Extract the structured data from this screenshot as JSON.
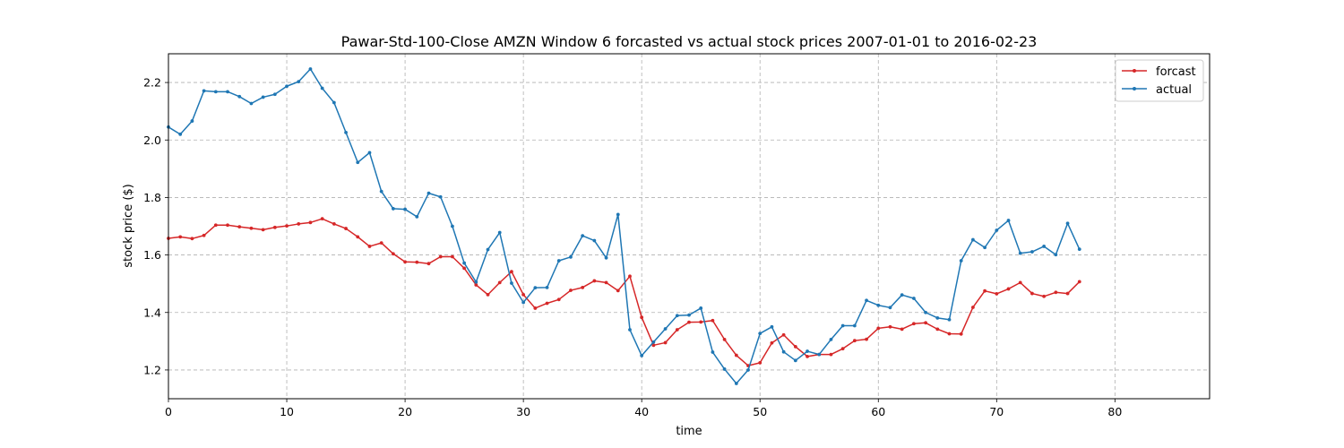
{
  "chart_data": {
    "type": "line",
    "title": "Pawar-Std-100-Close AMZN Window 6 forcasted vs actual stock prices 2007-01-01 to 2016-02-23",
    "xlabel": "time",
    "ylabel": "stock price ($)",
    "xlim": [
      0,
      88
    ],
    "ylim": [
      1.1,
      2.3
    ],
    "xticks": [
      0,
      10,
      20,
      30,
      40,
      50,
      60,
      70,
      80
    ],
    "yticks": [
      1.2,
      1.4,
      1.6,
      1.8,
      2.0,
      2.2
    ],
    "grid": true,
    "legend_position": "top-right",
    "series": [
      {
        "name": "forcast",
        "color": "#d62728",
        "x_start": 0,
        "values": [
          1.658,
          1.663,
          1.657,
          1.668,
          1.704,
          1.704,
          1.698,
          1.693,
          1.688,
          1.696,
          1.701,
          1.708,
          1.713,
          1.726,
          1.708,
          1.692,
          1.663,
          1.63,
          1.642,
          1.604,
          1.576,
          1.575,
          1.57,
          1.594,
          1.594,
          1.554,
          1.496,
          1.462,
          1.504,
          1.542,
          1.462,
          1.415,
          1.432,
          1.445,
          1.477,
          1.487,
          1.51,
          1.504,
          1.476,
          1.526,
          1.383,
          1.286,
          1.295,
          1.34,
          1.366,
          1.367,
          1.372,
          1.306,
          1.251,
          1.215,
          1.225,
          1.294,
          1.322,
          1.281,
          1.247,
          1.254,
          1.254,
          1.274,
          1.302,
          1.307,
          1.345,
          1.35,
          1.342,
          1.361,
          1.364,
          1.342,
          1.326,
          1.325,
          1.418,
          1.475,
          1.465,
          1.482,
          1.504,
          1.466,
          1.456,
          1.47,
          1.466,
          1.507
        ]
      },
      {
        "name": "actual",
        "color": "#1f77b4",
        "x_start": 0,
        "values": [
          2.045,
          2.02,
          2.066,
          2.171,
          2.168,
          2.168,
          2.151,
          2.127,
          2.149,
          2.159,
          2.187,
          2.203,
          2.247,
          2.18,
          2.13,
          2.026,
          1.922,
          1.956,
          1.821,
          1.761,
          1.759,
          1.733,
          1.815,
          1.802,
          1.7,
          1.572,
          1.506,
          1.619,
          1.678,
          1.502,
          1.435,
          1.486,
          1.487,
          1.58,
          1.593,
          1.667,
          1.65,
          1.59,
          1.741,
          1.34,
          1.25,
          1.297,
          1.343,
          1.389,
          1.391,
          1.415,
          1.262,
          1.203,
          1.153,
          1.2,
          1.327,
          1.35,
          1.263,
          1.233,
          1.265,
          1.254,
          1.306,
          1.354,
          1.354,
          1.442,
          1.425,
          1.417,
          1.461,
          1.449,
          1.4,
          1.381,
          1.375,
          1.58,
          1.653,
          1.626,
          1.686,
          1.72,
          1.606,
          1.611,
          1.63,
          1.601,
          1.71,
          1.62
        ]
      }
    ]
  }
}
